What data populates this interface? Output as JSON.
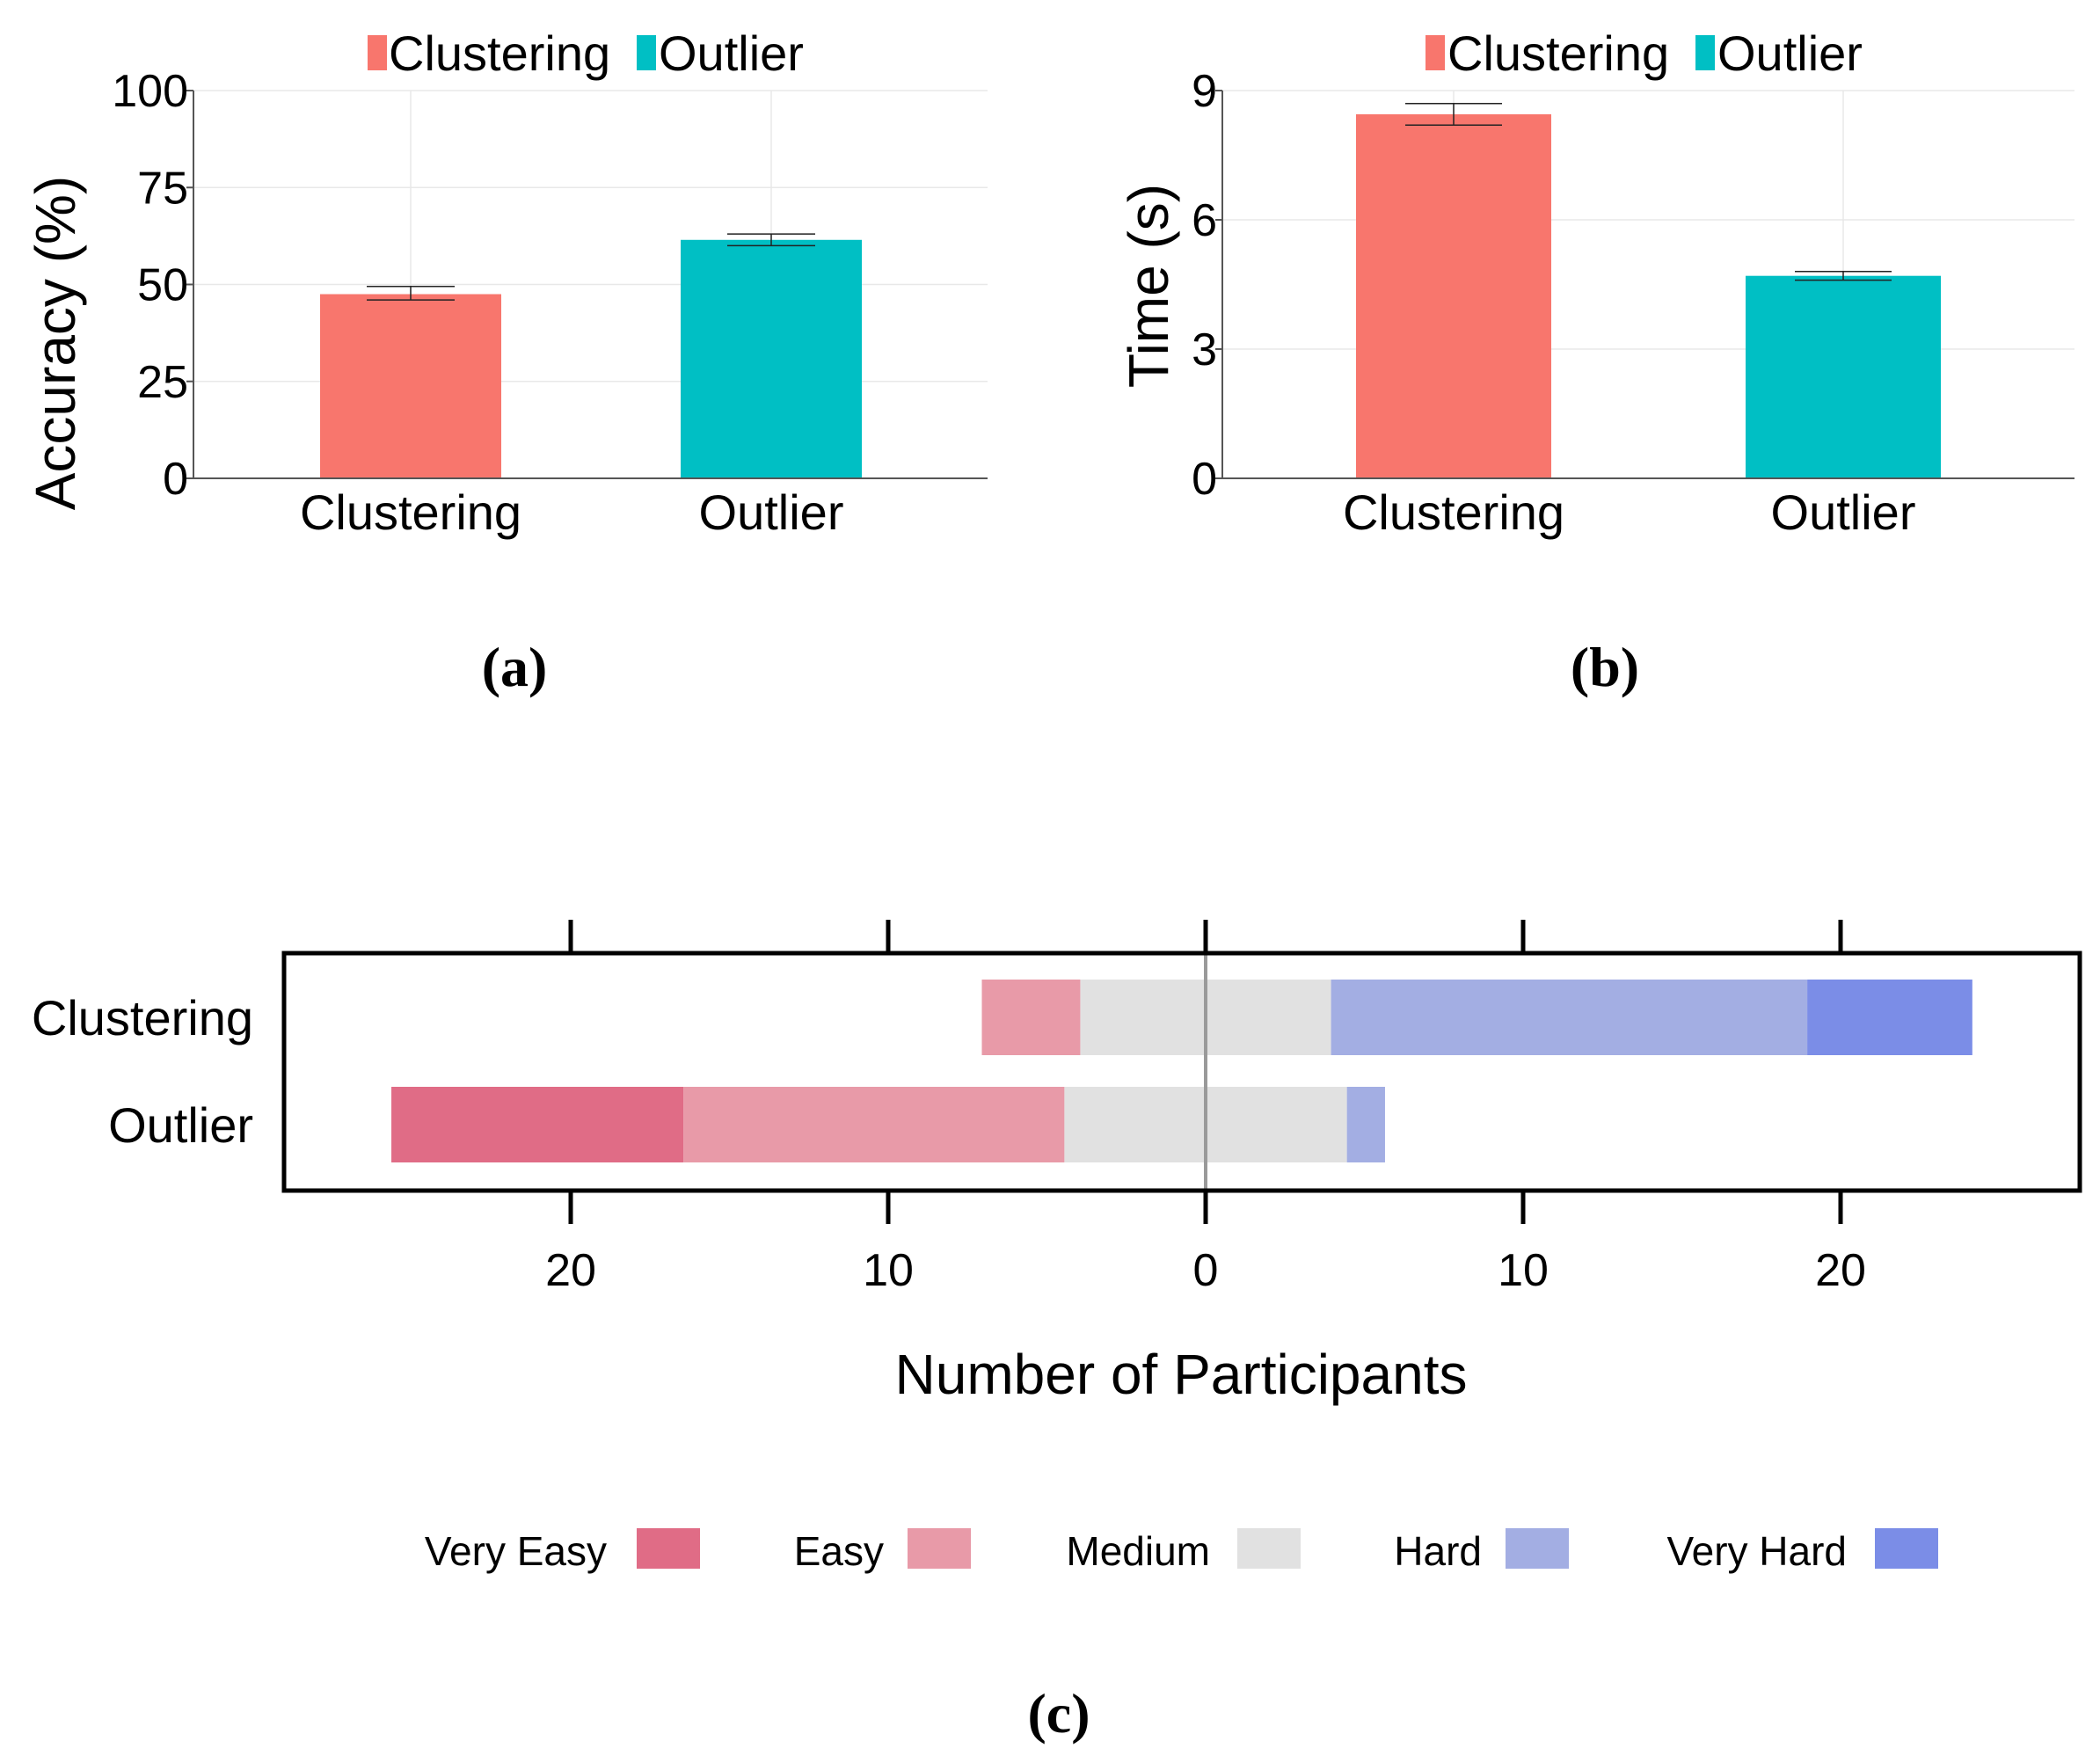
{
  "chart_data": [
    {
      "id": "a",
      "type": "bar",
      "panel_label": "(a)",
      "categories": [
        "Clustering",
        "Outlier"
      ],
      "values": [
        47.5,
        61.5
      ],
      "error": [
        [
          46,
          49.5
        ],
        [
          60,
          63
        ]
      ],
      "ylabel": "Accuracy (%)",
      "ylim": [
        0,
        100
      ],
      "yticks": [
        "0",
        "25",
        "50",
        "75",
        "100"
      ],
      "ytick_values": [
        0,
        25,
        50,
        75,
        100
      ],
      "legend": [
        "Clustering",
        "Outlier"
      ],
      "colors": [
        "#F8766D",
        "#00BFC4"
      ]
    },
    {
      "id": "b",
      "type": "bar",
      "panel_label": "(b)",
      "categories": [
        "Clustering",
        "Outlier"
      ],
      "values": [
        8.45,
        4.7
      ],
      "error": [
        [
          8.2,
          8.7
        ],
        [
          4.6,
          4.8
        ]
      ],
      "ylabel": "Time (s)",
      "ylim": [
        0,
        9
      ],
      "yticks": [
        "0",
        "3",
        "6",
        "9"
      ],
      "ytick_values": [
        0,
        3,
        6,
        9
      ],
      "legend": [
        "Clustering",
        "Outlier"
      ],
      "colors": [
        "#F8766D",
        "#00BFC4"
      ]
    },
    {
      "id": "c",
      "type": "bar",
      "orientation": "diverging-horizontal-stacked",
      "panel_label": "(c)",
      "categories": [
        "Clustering",
        "Outlier"
      ],
      "levels": [
        "Very Easy",
        "Easy",
        "Medium",
        "Hard",
        "Very Hard"
      ],
      "level_colors": [
        "#E06C86",
        "#E89AA8",
        "#E1E1E1",
        "#A3AEE3",
        "#7B8DE7"
      ],
      "series": [
        {
          "name": "Very Easy",
          "values": [
            0,
            9.2
          ]
        },
        {
          "name": "Easy",
          "values": [
            3.1,
            12
          ]
        },
        {
          "name": "Medium",
          "values": [
            7.9,
            8.9
          ]
        },
        {
          "name": "Hard",
          "values": [
            15,
            1.2
          ]
        },
        {
          "name": "Very Hard",
          "values": [
            5.2,
            0
          ]
        }
      ],
      "xlabel": "Number of Participants",
      "xlim": [
        -28,
        28
      ],
      "xtick_values": [
        -20,
        -10,
        0,
        10,
        20
      ],
      "xtick_labels": [
        "20",
        "10",
        "0",
        "10",
        "20"
      ]
    }
  ]
}
